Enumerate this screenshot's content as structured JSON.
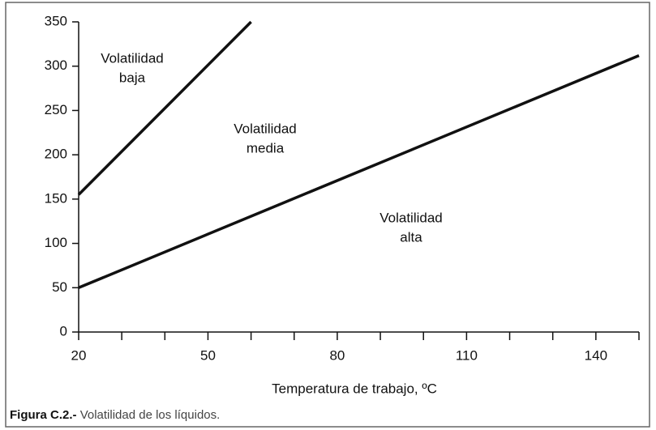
{
  "chart_data": {
    "type": "line",
    "xlabel": "Temperatura de trabajo, ºC",
    "x": [
      20,
      150
    ],
    "series": [
      {
        "color": "#111111",
        "x": [
          20,
          60
        ],
        "values": [
          155,
          350
        ]
      },
      {
        "color": "#111111",
        "x": [
          20,
          150
        ],
        "values": [
          50,
          312
        ]
      }
    ],
    "xlim": [
      20,
      150
    ],
    "xticks": [
      20,
      50,
      80,
      110,
      140
    ],
    "xticks_minor": [
      30,
      40,
      60,
      70,
      90,
      100,
      120,
      130,
      150
    ],
    "ylim": [
      0,
      350
    ],
    "yticks": [
      0,
      50,
      100,
      150,
      200,
      250,
      300,
      350
    ],
    "grid": false,
    "annotations": [
      {
        "lines": [
          "Volatilidad",
          "baja"
        ]
      },
      {
        "lines": [
          "Volatilidad",
          "media"
        ]
      },
      {
        "lines": [
          "Volatilidad",
          "alta"
        ]
      }
    ]
  },
  "caption": {
    "label": "Figura C.2.-",
    "text": "Volatilidad de los líquidos."
  }
}
